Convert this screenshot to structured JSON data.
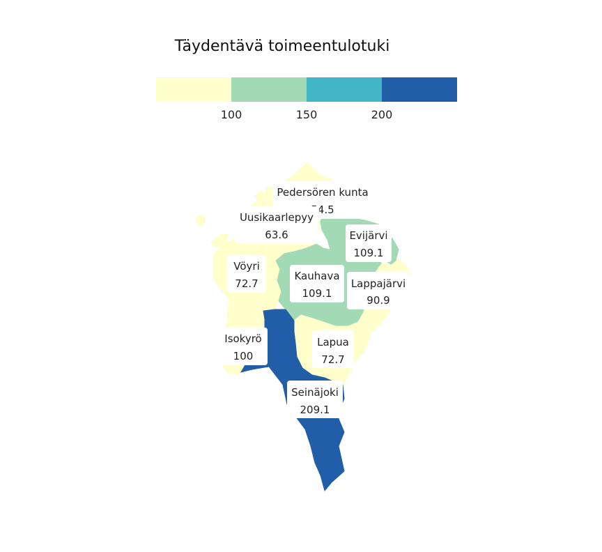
{
  "title": "Täydentävä toimeentulotuki",
  "colors": {
    "bin1": "#ffffcc",
    "bin2": "#a1dab4",
    "bin3": "#41b6c4",
    "bin4": "#225ea8"
  },
  "legend": {
    "ticks": [
      "100",
      "150",
      "200"
    ]
  },
  "municipalities": [
    {
      "name": "Pedersören kunta",
      "value": "54.5",
      "bin": "bin1"
    },
    {
      "name": "Uusikaarlepyy",
      "value": "63.6",
      "bin": "bin1"
    },
    {
      "name": "Evijärvi",
      "value": "109.1",
      "bin": "bin2"
    },
    {
      "name": "Vöyri",
      "value": "72.7",
      "bin": "bin1"
    },
    {
      "name": "Kauhava",
      "value": "109.1",
      "bin": "bin2"
    },
    {
      "name": "Lappajärvi",
      "value": "90.9",
      "bin": "bin1"
    },
    {
      "name": "Isokyrö",
      "value": "100",
      "bin": "bin1"
    },
    {
      "name": "Lapua",
      "value": "72.7",
      "bin": "bin1"
    },
    {
      "name": "Seinäjoki",
      "value": "209.1",
      "bin": "bin4"
    }
  ]
}
